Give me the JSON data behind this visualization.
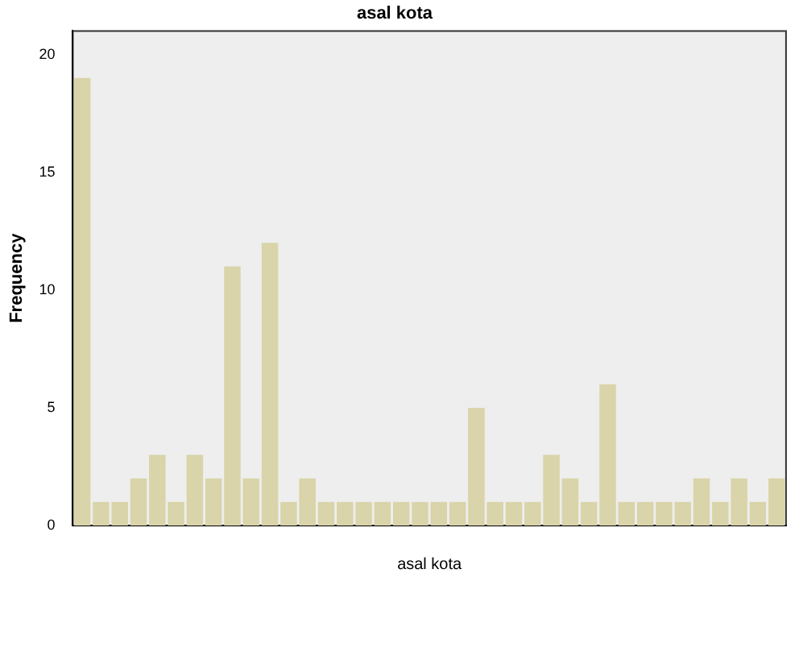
{
  "chart_data": {
    "type": "bar",
    "title": "asal kota",
    "xlabel": "asal kota",
    "ylabel": "Frequency",
    "categories": [
      null,
      null,
      null,
      null,
      null,
      null,
      null,
      null,
      null,
      null,
      null,
      null,
      null,
      null,
      null,
      null,
      null,
      null,
      null,
      null,
      null,
      null,
      null,
      null,
      null,
      null,
      null,
      null,
      null,
      null,
      null,
      null,
      null,
      null,
      null,
      null,
      null,
      null
    ],
    "values": [
      19,
      1,
      1,
      2,
      3,
      1,
      3,
      2,
      11,
      2,
      12,
      1,
      2,
      1,
      1,
      1,
      1,
      1,
      1,
      1,
      1,
      5,
      1,
      1,
      1,
      3,
      2,
      1,
      6,
      1,
      1,
      1,
      1,
      2,
      1,
      2,
      1,
      2
    ],
    "color": "#d9d4a9",
    "ylim": [
      0,
      21
    ],
    "yticks": [
      0,
      5,
      10,
      15,
      20
    ],
    "grid": false,
    "legend": false
  }
}
